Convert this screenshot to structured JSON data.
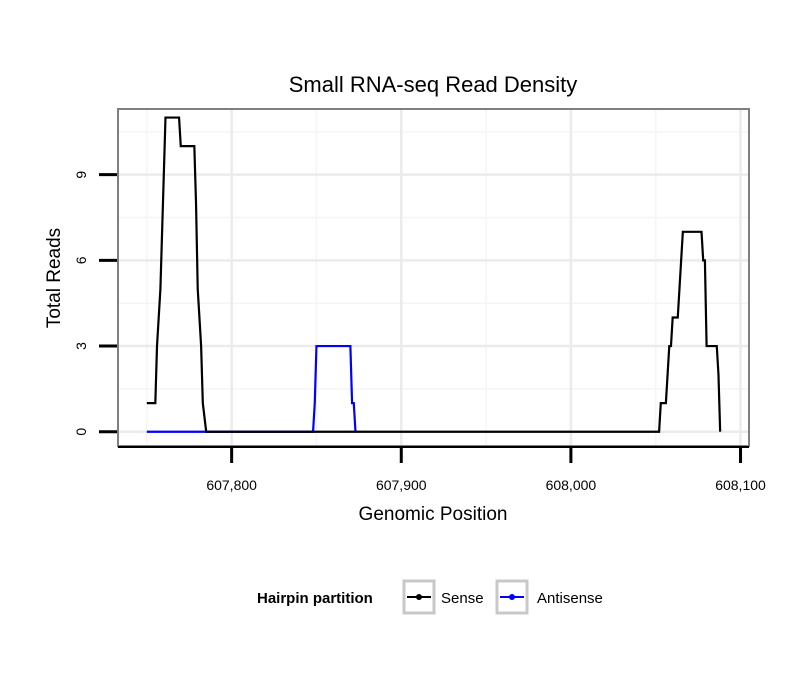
{
  "chart_data": {
    "type": "line",
    "title": "Small RNA-seq Read Density",
    "xlabel": "Genomic Position",
    "ylabel": "Total Reads",
    "xlim": [
      607733,
      608105
    ],
    "ylim": [
      -0.5,
      11.3
    ],
    "x_ticks": [
      607800,
      607900,
      608000,
      608100
    ],
    "x_tick_labels": [
      "607,800",
      "607,900",
      "608,000",
      "608,100"
    ],
    "y_ticks": [
      0,
      3,
      6,
      9
    ],
    "y_tick_labels": [
      "0",
      "3",
      "6",
      "9"
    ],
    "grid": true,
    "legend_position": "bottom",
    "legend": {
      "title": "Hairpin partition",
      "items": [
        "Sense",
        "Antisense"
      ]
    },
    "series": [
      {
        "name": "Sense",
        "color": "#000000",
        "x": [
          607750,
          607755,
          607756,
          607757,
          607758,
          607759,
          607760,
          607761,
          607763,
          607769,
          607770,
          607778,
          607779,
          607780,
          607781,
          607782,
          607783,
          607785,
          607786,
          608052,
          608053,
          608056,
          608057,
          608058,
          608059,
          608060,
          608063,
          608064,
          608065,
          608066,
          608067,
          608068,
          608069,
          608070,
          608077,
          608078,
          608079,
          608080,
          608085,
          608086,
          608087,
          608088
        ],
        "y": [
          1,
          1,
          3,
          4,
          5,
          7,
          9,
          11,
          11,
          11,
          10,
          10,
          8,
          5,
          4,
          3,
          1,
          0,
          0,
          0,
          1,
          1,
          2,
          3,
          3,
          4,
          4,
          5,
          6,
          7,
          7,
          7,
          7,
          7,
          7,
          6,
          6,
          3,
          3,
          3,
          2,
          0
        ]
      },
      {
        "name": "Antisense",
        "color": "#0000ff",
        "x": [
          607750,
          607848,
          607849,
          607850,
          607870,
          607871,
          607872,
          607873
        ],
        "y": [
          0,
          0,
          1,
          3,
          3,
          1,
          1,
          0
        ]
      }
    ]
  }
}
